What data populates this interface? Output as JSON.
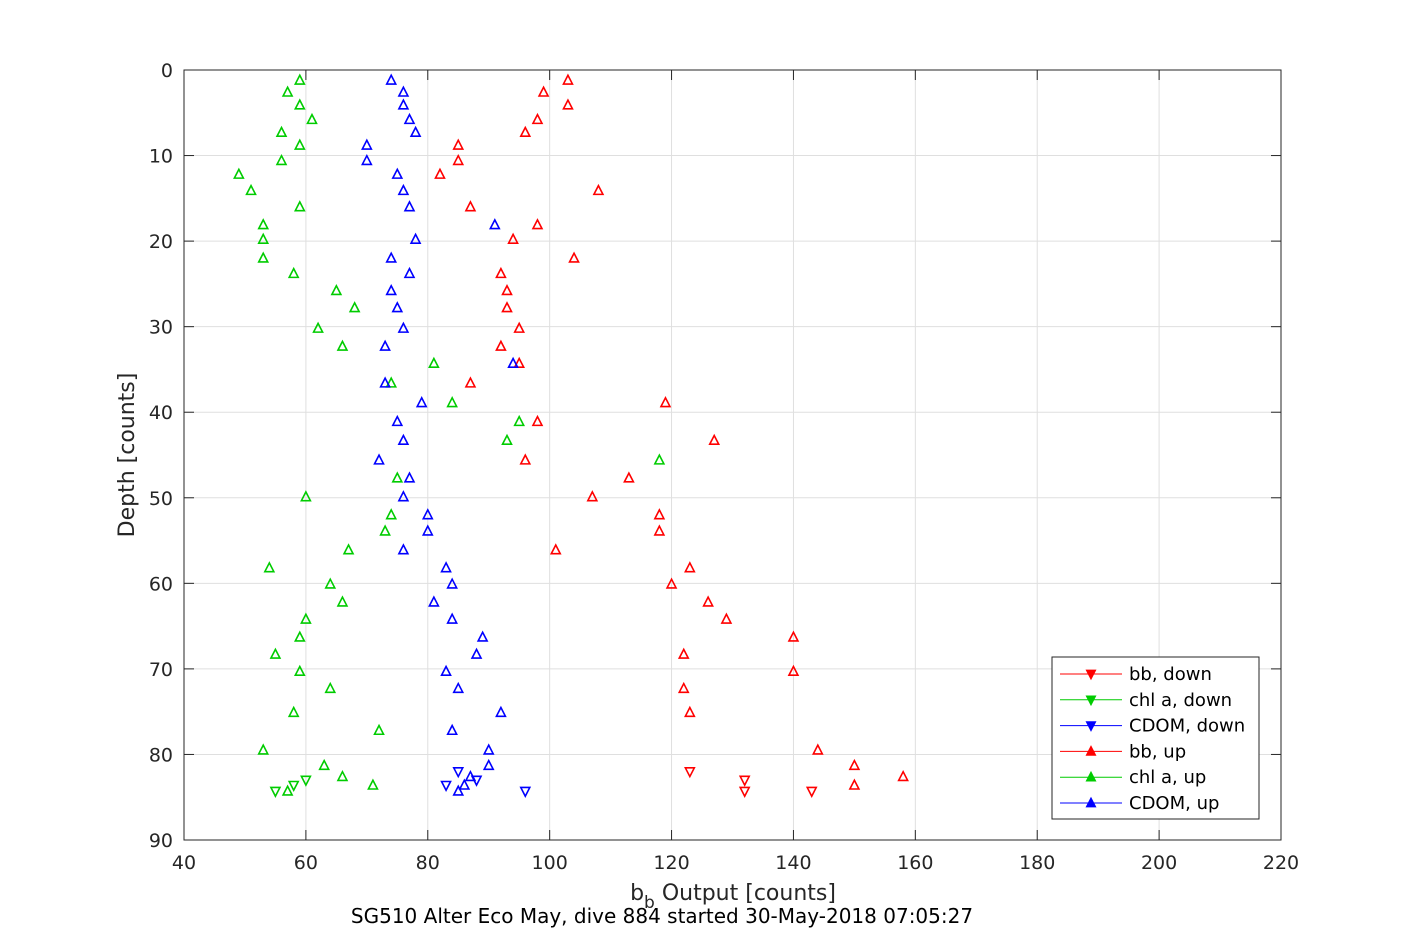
{
  "chart_data": {
    "type": "scatter",
    "xlabel_main": "b",
    "xlabel_sub": "b",
    "xlabel_rest": " Output [counts]",
    "ylabel": "Depth [counts]",
    "caption": "SG510 Alter Eco May, dive 884 started 30-May-2018 07:05:27",
    "xlim": [
      40,
      220
    ],
    "ylim": [
      0,
      90
    ],
    "y_reversed": true,
    "grid": true,
    "legend_position": "bottom-right",
    "x_ticks": [
      40,
      60,
      80,
      100,
      120,
      140,
      160,
      180,
      200,
      220
    ],
    "y_ticks": [
      0,
      10,
      20,
      30,
      40,
      50,
      60,
      70,
      80,
      90
    ],
    "series": [
      {
        "name": "bb, down",
        "color": "#ff0000",
        "marker": "triangle-down",
        "points": [
          [
            123,
            82
          ],
          [
            132,
            83
          ],
          [
            132,
            84.3
          ],
          [
            143,
            84.3
          ]
        ]
      },
      {
        "name": "chl a, down",
        "color": "#00cc00",
        "marker": "triangle-down",
        "points": [
          [
            55,
            84.3
          ],
          [
            58,
            83.6
          ],
          [
            60,
            83
          ]
        ]
      },
      {
        "name": "CDOM, down",
        "color": "#0000ff",
        "marker": "triangle-down",
        "points": [
          [
            85,
            82
          ],
          [
            83,
            83.6
          ],
          [
            88,
            83
          ],
          [
            96,
            84.3
          ]
        ]
      },
      {
        "name": "bb, up",
        "color": "#ff0000",
        "marker": "triangle-up",
        "points": [
          [
            103,
            1.2
          ],
          [
            99,
            2.6
          ],
          [
            103,
            4.1
          ],
          [
            98,
            5.8
          ],
          [
            96,
            7.3
          ],
          [
            85,
            8.8
          ],
          [
            85,
            10.6
          ],
          [
            82,
            12.2
          ],
          [
            108,
            14.1
          ],
          [
            87,
            16.0
          ],
          [
            98,
            18.1
          ],
          [
            94,
            19.8
          ],
          [
            104,
            22.0
          ],
          [
            92,
            23.8
          ],
          [
            93,
            25.8
          ],
          [
            93,
            27.8
          ],
          [
            95,
            30.2
          ],
          [
            92,
            32.3
          ],
          [
            95,
            34.3
          ],
          [
            87,
            36.6
          ],
          [
            119,
            38.9
          ],
          [
            98,
            41.1
          ],
          [
            127,
            43.3
          ],
          [
            96,
            45.6
          ],
          [
            113,
            47.7
          ],
          [
            107,
            49.9
          ],
          [
            118,
            52.0
          ],
          [
            118,
            53.9
          ],
          [
            101,
            56.1
          ],
          [
            123,
            58.2
          ],
          [
            120,
            60.1
          ],
          [
            126,
            62.2
          ],
          [
            129,
            64.2
          ],
          [
            140,
            66.3
          ],
          [
            122,
            68.3
          ],
          [
            140,
            70.3
          ],
          [
            122,
            72.3
          ],
          [
            123,
            75.1
          ],
          [
            144,
            79.5
          ],
          [
            150,
            81.3
          ],
          [
            158,
            82.6
          ],
          [
            150,
            83.6
          ]
        ]
      },
      {
        "name": "chl a, up",
        "color": "#00cc00",
        "marker": "triangle-up",
        "points": [
          [
            59,
            1.2
          ],
          [
            57,
            2.6
          ],
          [
            59,
            4.1
          ],
          [
            61,
            5.8
          ],
          [
            56,
            7.3
          ],
          [
            59,
            8.8
          ],
          [
            56,
            10.6
          ],
          [
            49,
            12.2
          ],
          [
            51,
            14.1
          ],
          [
            59,
            16.0
          ],
          [
            53,
            18.1
          ],
          [
            53,
            19.8
          ],
          [
            53,
            22.0
          ],
          [
            58,
            23.8
          ],
          [
            65,
            25.8
          ],
          [
            68,
            27.8
          ],
          [
            62,
            30.2
          ],
          [
            66,
            32.3
          ],
          [
            81,
            34.3
          ],
          [
            74,
            36.6
          ],
          [
            84,
            38.9
          ],
          [
            95,
            41.1
          ],
          [
            93,
            43.3
          ],
          [
            118,
            45.6
          ],
          [
            75,
            47.7
          ],
          [
            60,
            49.9
          ],
          [
            74,
            52.0
          ],
          [
            73,
            53.9
          ],
          [
            67,
            56.1
          ],
          [
            54,
            58.2
          ],
          [
            64,
            60.1
          ],
          [
            66,
            62.2
          ],
          [
            60,
            64.2
          ],
          [
            59,
            66.3
          ],
          [
            55,
            68.3
          ],
          [
            59,
            70.3
          ],
          [
            64,
            72.3
          ],
          [
            58,
            75.1
          ],
          [
            72,
            77.2
          ],
          [
            53,
            79.5
          ],
          [
            63,
            81.3
          ],
          [
            66,
            82.6
          ],
          [
            71,
            83.6
          ],
          [
            57,
            84.3
          ]
        ]
      },
      {
        "name": "CDOM, up",
        "color": "#0000ff",
        "marker": "triangle-up",
        "points": [
          [
            74,
            1.2
          ],
          [
            76,
            2.6
          ],
          [
            76,
            4.1
          ],
          [
            77,
            5.8
          ],
          [
            78,
            7.3
          ],
          [
            70,
            8.8
          ],
          [
            70,
            10.6
          ],
          [
            75,
            12.2
          ],
          [
            76,
            14.1
          ],
          [
            77,
            16.0
          ],
          [
            91,
            18.1
          ],
          [
            78,
            19.8
          ],
          [
            74,
            22.0
          ],
          [
            77,
            23.8
          ],
          [
            74,
            25.8
          ],
          [
            75,
            27.8
          ],
          [
            76,
            30.2
          ],
          [
            73,
            32.3
          ],
          [
            94,
            34.3
          ],
          [
            73,
            36.6
          ],
          [
            79,
            38.9
          ],
          [
            75,
            41.1
          ],
          [
            76,
            43.3
          ],
          [
            72,
            45.6
          ],
          [
            77,
            47.7
          ],
          [
            76,
            49.9
          ],
          [
            80,
            52.0
          ],
          [
            80,
            53.9
          ],
          [
            76,
            56.1
          ],
          [
            83,
            58.2
          ],
          [
            84,
            60.1
          ],
          [
            81,
            62.2
          ],
          [
            84,
            64.2
          ],
          [
            89,
            66.3
          ],
          [
            88,
            68.3
          ],
          [
            83,
            70.3
          ],
          [
            85,
            72.3
          ],
          [
            92,
            75.1
          ],
          [
            84,
            77.2
          ],
          [
            90,
            79.5
          ],
          [
            90,
            81.3
          ],
          [
            87,
            82.6
          ],
          [
            86,
            83.6
          ],
          [
            85,
            84.3
          ]
        ]
      }
    ]
  }
}
